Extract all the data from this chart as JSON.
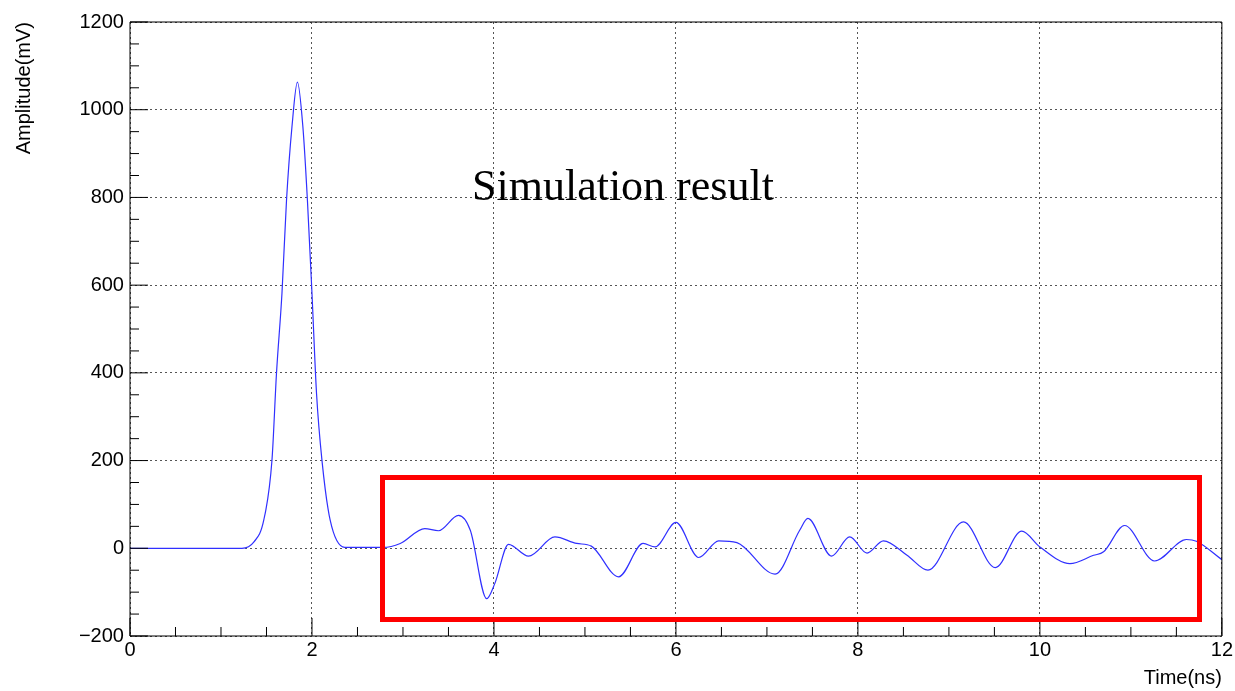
{
  "chart_data": {
    "type": "line",
    "xlabel": "Time(ns)",
    "ylabel": "Amplitude(mV)",
    "annotations": [
      "Simulation result"
    ],
    "xlim": [
      0,
      12
    ],
    "xticks": [
      0,
      2,
      4,
      6,
      8,
      10,
      12
    ],
    "ylim": [
      -200,
      1200
    ],
    "yticks": [
      -200,
      0,
      200,
      400,
      600,
      800,
      1000,
      1200
    ],
    "grid": true,
    "legend": false,
    "marker": "none",
    "line_style": "solid",
    "series": [
      {
        "color": "#3030ff",
        "x": [
          0,
          1.23,
          1.36,
          1.47,
          1.56,
          1.61,
          1.67,
          1.72,
          1.78,
          1.84,
          1.9,
          1.95,
          2.0,
          2.05,
          2.11,
          2.2,
          2.36,
          2.6,
          2.78,
          2.97,
          3.24,
          3.39,
          3.61,
          3.74,
          3.92,
          4.01,
          4.16,
          4.38,
          4.67,
          4.91,
          5.07,
          5.37,
          5.64,
          5.77,
          6.0,
          6.25,
          6.47,
          6.67,
          7.09,
          7.36,
          7.45,
          7.71,
          7.91,
          8.1,
          8.28,
          8.54,
          8.77,
          9.16,
          9.51,
          9.8,
          10.0,
          10.33,
          10.59,
          10.7,
          10.93,
          11.26,
          11.61,
          11.72,
          12.0
        ],
        "values": [
          0,
          0,
          14,
          64,
          200,
          399,
          581,
          793,
          961,
          1063,
          961,
          793,
          581,
          353,
          200,
          64,
          2,
          2,
          2,
          11,
          45,
          40,
          75,
          41,
          -115,
          -80,
          9,
          -18,
          26,
          11,
          5,
          -65,
          11,
          3,
          59,
          -21,
          17,
          13,
          -59,
          41,
          68,
          -18,
          26,
          -11,
          17,
          -16,
          -50,
          60,
          -44,
          39,
          3,
          -35,
          -16,
          -8,
          52,
          -29,
          20,
          16,
          -26
        ]
      }
    ]
  }
}
